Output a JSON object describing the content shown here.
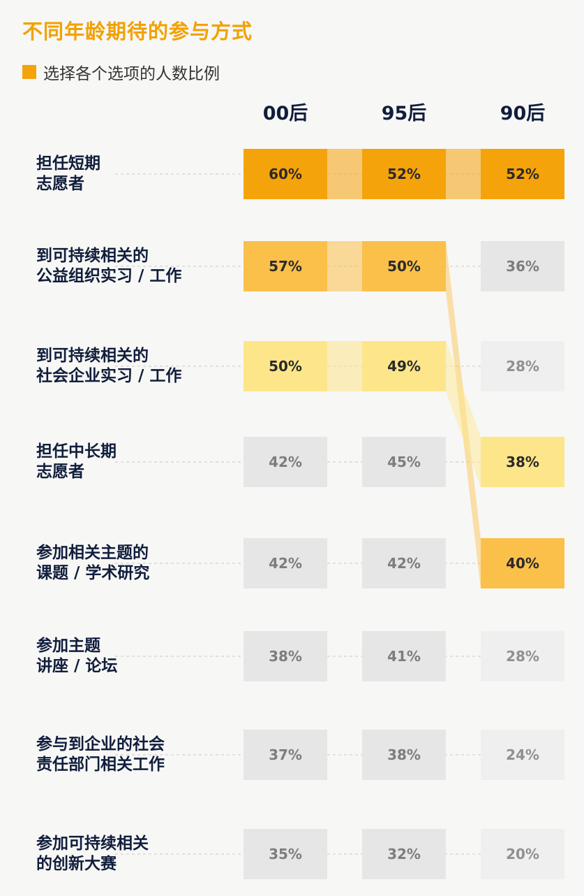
{
  "title": "不同年龄期待的参与方式",
  "legend": {
    "label": "选择各个选项的人数比例",
    "color": "#f5a30a"
  },
  "chart_data": {
    "type": "table",
    "title": "不同年龄期待的参与方式",
    "columns": [
      "00后",
      "95后",
      "90后"
    ],
    "rows": [
      {
        "label_lines": [
          "担任短期",
          "志愿者"
        ],
        "values": [
          60,
          52,
          52
        ]
      },
      {
        "label_lines": [
          "到可持续相关的",
          "公益组织实习 / 工作"
        ],
        "values": [
          57,
          50,
          36
        ]
      },
      {
        "label_lines": [
          "到可持续相关的",
          "社会企业实习 / 工作"
        ],
        "values": [
          50,
          49,
          28
        ]
      },
      {
        "label_lines": [
          "担任中长期",
          "志愿者"
        ],
        "values": [
          42,
          45,
          38
        ]
      },
      {
        "label_lines": [
          "参加相关主题的",
          "课题 / 学术研究"
        ],
        "values": [
          42,
          42,
          40
        ]
      },
      {
        "label_lines": [
          "参加主题",
          "讲座 / 论坛"
        ],
        "values": [
          38,
          41,
          28
        ]
      },
      {
        "label_lines": [
          "参与到企业的社会",
          "责任部门相关工作"
        ],
        "values": [
          37,
          38,
          24
        ]
      },
      {
        "label_lines": [
          "参加可持续相关",
          "的创新大赛"
        ],
        "values": [
          35,
          32,
          20
        ]
      }
    ],
    "highlight_ranks": [
      [
        1,
        1,
        1
      ],
      [
        2,
        2,
        0
      ],
      [
        3,
        3,
        0
      ],
      [
        0,
        0,
        3
      ],
      [
        0,
        0,
        2
      ],
      [
        0,
        0,
        0
      ],
      [
        0,
        0,
        0
      ],
      [
        0,
        0,
        0
      ]
    ],
    "value_suffix": "%"
  },
  "colors": {
    "rank1": "#f5a30a",
    "rank2": "#fbc04a",
    "rank3": "#fde68a",
    "neutral": "#e6e6e6",
    "light": "#efefef",
    "dark_text": "#2a2a2a",
    "gray_text": "#7d7d7d",
    "light_gray_text": "#909090"
  }
}
